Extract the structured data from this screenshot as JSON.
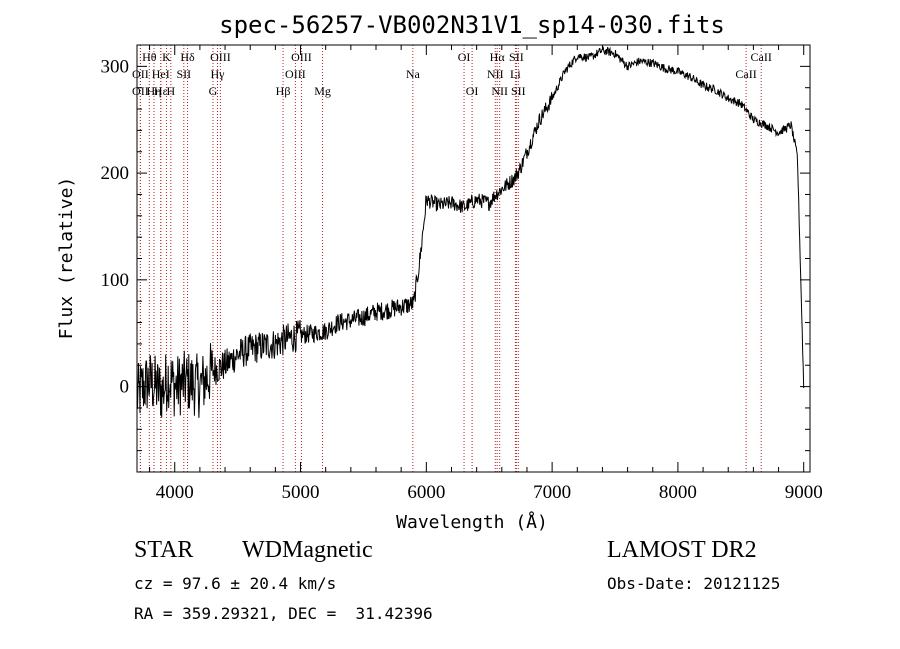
{
  "chart_data": {
    "type": "line",
    "title": "spec-56257-VB002N31V1_sp14-030.fits",
    "xlabel": "Wavelength (Å)",
    "ylabel": "Flux (relative)",
    "xlim": [
      3700,
      9050
    ],
    "ylim": [
      -80,
      320
    ],
    "xticks": [
      4000,
      5000,
      6000,
      7000,
      8000,
      9000
    ],
    "yticks": [
      0,
      100,
      200,
      300
    ],
    "grid": false,
    "series": [
      {
        "x": [
          3700,
          3750,
          3800,
          3850,
          3900,
          3950,
          4000,
          4100,
          4200,
          4300,
          4400,
          4500,
          4600,
          4700,
          4800,
          4900,
          5000,
          5100,
          5200,
          5300,
          5400,
          5500,
          5600,
          5700,
          5800,
          5850,
          5900,
          5950,
          6000,
          6100,
          6200,
          6300,
          6400,
          6500,
          6550,
          6600,
          6700,
          6750,
          6800,
          6900,
          7000,
          7100,
          7200,
          7300,
          7400,
          7500,
          7600,
          7700,
          7800,
          7900,
          8000,
          8100,
          8200,
          8300,
          8400,
          8500,
          8550,
          8600,
          8700,
          8800,
          8900,
          8950,
          9000
        ],
        "y": [
          -10,
          0,
          5,
          0,
          -5,
          10,
          0,
          5,
          0,
          15,
          20,
          30,
          35,
          38,
          40,
          45,
          48,
          50,
          52,
          60,
          62,
          65,
          70,
          72,
          75,
          76,
          78,
          120,
          175,
          170,
          172,
          168,
          175,
          172,
          180,
          185,
          195,
          205,
          220,
          250,
          270,
          295,
          310,
          308,
          315,
          312,
          300,
          305,
          303,
          298,
          295,
          290,
          282,
          278,
          270,
          265,
          258,
          250,
          245,
          238,
          245,
          215,
          0
        ]
      }
    ],
    "annotations": [
      {
        "label": "Hθ",
        "wavelength": 3798,
        "row": 1
      },
      {
        "label": "OII",
        "wavelength": 3727,
        "row": 2
      },
      {
        "label": "OII",
        "wavelength": 3727,
        "row": 3
      },
      {
        "label": "Hε",
        "wavelength": 3889,
        "row": 3
      },
      {
        "label": "HeI",
        "wavelength": 3889,
        "row": 2
      },
      {
        "label": "Hη",
        "wavelength": 3835,
        "row": 3
      },
      {
        "label": "K",
        "wavelength": 3934,
        "row": 1
      },
      {
        "label": "H",
        "wavelength": 3969,
        "row": 3
      },
      {
        "label": "SII",
        "wavelength": 4072,
        "row": 2
      },
      {
        "label": "Hδ",
        "wavelength": 4102,
        "row": 1
      },
      {
        "label": "OIII",
        "wavelength": 4363,
        "row": 1
      },
      {
        "label": "Hγ",
        "wavelength": 4340,
        "row": 2
      },
      {
        "label": "G",
        "wavelength": 4304,
        "row": 3
      },
      {
        "label": "Hβ",
        "wavelength": 4861,
        "row": 3
      },
      {
        "label": "OIII",
        "wavelength": 5007,
        "row": 1
      },
      {
        "label": "OIII",
        "wavelength": 4959,
        "row": 2
      },
      {
        "label": "Mg",
        "wavelength": 5175,
        "row": 3
      },
      {
        "label": "Na",
        "wavelength": 5893,
        "row": 2
      },
      {
        "label": "OI",
        "wavelength": 6300,
        "row": 1
      },
      {
        "label": "OI",
        "wavelength": 6364,
        "row": 3
      },
      {
        "label": "Hα",
        "wavelength": 6563,
        "row": 1
      },
      {
        "label": "SII",
        "wavelength": 6716,
        "row": 1
      },
      {
        "label": "NII",
        "wavelength": 6548,
        "row": 2
      },
      {
        "label": "Li",
        "wavelength": 6708,
        "row": 2
      },
      {
        "label": "NII",
        "wavelength": 6583,
        "row": 3
      },
      {
        "label": "SII",
        "wavelength": 6731,
        "row": 3
      },
      {
        "label": "CaII",
        "wavelength": 8662,
        "row": 1
      },
      {
        "label": "CaII",
        "wavelength": 8542,
        "row": 2
      }
    ]
  },
  "info": {
    "object_class": "STAR",
    "subclass": "WDMagnetic",
    "survey": "LAMOST DR2",
    "cz": "cz = 97.6 ± 20.4 km/s",
    "obs_date": "Obs-Date: 20121125",
    "radec": "RA = 359.29321, DEC =  31.42396"
  },
  "colors": {
    "spectrum": "#000000",
    "line_markers": "#b22222",
    "axes": "#000000"
  }
}
